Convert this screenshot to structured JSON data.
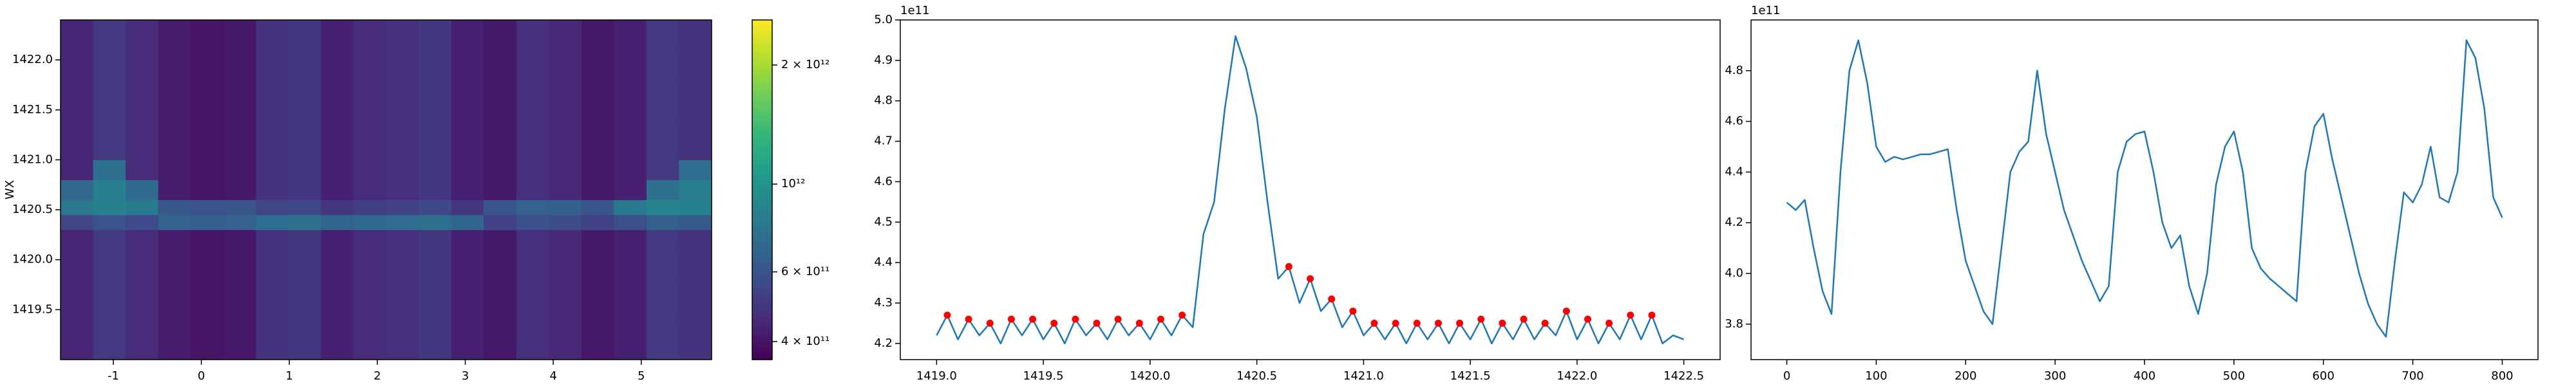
{
  "chart_data": [
    {
      "type": "heatmap",
      "ylabel": "WX",
      "cmap": "viridis",
      "log_color": true,
      "x_edges": [
        -1.6,
        -1.23,
        -0.86,
        -0.49,
        -0.12,
        0.25,
        0.62,
        0.99,
        1.36,
        1.73,
        2.1,
        2.47,
        2.84,
        3.21,
        3.58,
        3.95,
        4.32,
        4.69,
        5.06,
        5.43,
        5.8
      ],
      "y_edges": [
        1419.0,
        1419.4,
        1419.8,
        1420.1,
        1420.3,
        1420.45,
        1420.6,
        1420.8,
        1421.0,
        1421.4,
        1421.8,
        1422.1,
        1422.4
      ],
      "z": [
        [
          440000000000.0,
          500000000000.0,
          460000000000.0,
          420000000000.0,
          400000000000.0,
          410000000000.0,
          480000000000.0,
          490000000000.0,
          430000000000.0,
          460000000000.0,
          470000000000.0,
          490000000000.0,
          430000000000.0,
          410000000000.0,
          470000000000.0,
          450000000000.0,
          410000000000.0,
          430000000000.0,
          500000000000.0,
          480000000000.0
        ],
        [
          440000000000.0,
          500000000000.0,
          460000000000.0,
          420000000000.0,
          400000000000.0,
          410000000000.0,
          480000000000.0,
          490000000000.0,
          430000000000.0,
          460000000000.0,
          470000000000.0,
          490000000000.0,
          430000000000.0,
          410000000000.0,
          470000000000.0,
          450000000000.0,
          410000000000.0,
          430000000000.0,
          500000000000.0,
          480000000000.0
        ],
        [
          440000000000.0,
          500000000000.0,
          460000000000.0,
          420000000000.0,
          400000000000.0,
          410000000000.0,
          480000000000.0,
          490000000000.0,
          430000000000.0,
          460000000000.0,
          470000000000.0,
          490000000000.0,
          430000000000.0,
          410000000000.0,
          470000000000.0,
          450000000000.0,
          410000000000.0,
          430000000000.0,
          500000000000.0,
          480000000000.0
        ],
        [
          440000000000.0,
          500000000000.0,
          460000000000.0,
          420000000000.0,
          400000000000.0,
          410000000000.0,
          480000000000.0,
          490000000000.0,
          430000000000.0,
          460000000000.0,
          470000000000.0,
          490000000000.0,
          430000000000.0,
          410000000000.0,
          470000000000.0,
          450000000000.0,
          410000000000.0,
          430000000000.0,
          500000000000.0,
          480000000000.0
        ],
        [
          540000000000.0,
          600000000000.0,
          560000000000.0,
          670000000000.0,
          650000000000.0,
          660000000000.0,
          730000000000.0,
          740000000000.0,
          680000000000.0,
          710000000000.0,
          720000000000.0,
          740000000000.0,
          680000000000.0,
          530000000000.0,
          590000000000.0,
          570000000000.0,
          530000000000.0,
          580000000000.0,
          650000000000.0,
          630000000000.0
        ],
        [
          790000000000.0,
          850000000000.0,
          810000000000.0,
          620000000000.0,
          600000000000.0,
          610000000000.0,
          540000000000.0,
          550000000000.0,
          490000000000.0,
          520000000000.0,
          530000000000.0,
          550000000000.0,
          490000000000.0,
          610000000000.0,
          670000000000.0,
          650000000000.0,
          610000000000.0,
          810000000000.0,
          880000000000.0,
          860000000000.0
        ],
        [
          690000000000.0,
          850000000000.0,
          710000000000.0,
          420000000000.0,
          400000000000.0,
          410000000000.0,
          480000000000.0,
          490000000000.0,
          430000000000.0,
          460000000000.0,
          470000000000.0,
          490000000000.0,
          430000000000.0,
          410000000000.0,
          470000000000.0,
          450000000000.0,
          410000000000.0,
          430000000000.0,
          750000000000.0,
          830000000000.0
        ],
        [
          440000000000.0,
          750000000000.0,
          460000000000.0,
          420000000000.0,
          400000000000.0,
          410000000000.0,
          480000000000.0,
          490000000000.0,
          430000000000.0,
          460000000000.0,
          470000000000.0,
          490000000000.0,
          430000000000.0,
          410000000000.0,
          470000000000.0,
          450000000000.0,
          410000000000.0,
          430000000000.0,
          500000000000.0,
          730000000000.0
        ],
        [
          440000000000.0,
          500000000000.0,
          460000000000.0,
          420000000000.0,
          400000000000.0,
          410000000000.0,
          480000000000.0,
          490000000000.0,
          430000000000.0,
          460000000000.0,
          470000000000.0,
          490000000000.0,
          430000000000.0,
          410000000000.0,
          470000000000.0,
          450000000000.0,
          410000000000.0,
          430000000000.0,
          500000000000.0,
          480000000000.0
        ],
        [
          440000000000.0,
          500000000000.0,
          460000000000.0,
          420000000000.0,
          400000000000.0,
          410000000000.0,
          480000000000.0,
          490000000000.0,
          430000000000.0,
          460000000000.0,
          470000000000.0,
          490000000000.0,
          430000000000.0,
          410000000000.0,
          470000000000.0,
          450000000000.0,
          410000000000.0,
          430000000000.0,
          500000000000.0,
          480000000000.0
        ],
        [
          440000000000.0,
          500000000000.0,
          460000000000.0,
          420000000000.0,
          400000000000.0,
          410000000000.0,
          480000000000.0,
          490000000000.0,
          430000000000.0,
          460000000000.0,
          470000000000.0,
          490000000000.0,
          430000000000.0,
          410000000000.0,
          470000000000.0,
          450000000000.0,
          410000000000.0,
          430000000000.0,
          500000000000.0,
          480000000000.0
        ],
        [
          440000000000.0,
          500000000000.0,
          460000000000.0,
          420000000000.0,
          400000000000.0,
          410000000000.0,
          480000000000.0,
          490000000000.0,
          430000000000.0,
          460000000000.0,
          470000000000.0,
          490000000000.0,
          430000000000.0,
          410000000000.0,
          470000000000.0,
          450000000000.0,
          410000000000.0,
          430000000000.0,
          500000000000.0,
          480000000000.0
        ]
      ],
      "xlim": [
        -1.6,
        5.8
      ],
      "xticks": [
        -1,
        0,
        1,
        2,
        3,
        4,
        5
      ],
      "ylim": [
        1419.0,
        1422.4
      ],
      "yticks": [
        1419.5,
        {
          "value": 1420.0,
          "label": "1420.0"
        },
        1420.5,
        {
          "value": 1421.0,
          "label": "1421.0"
        },
        1421.5,
        {
          "value": 1422.0,
          "label": "1422.0"
        }
      ],
      "clim": [
        360000000000.0,
        2600000000000.0
      ],
      "cticks": [
        {
          "value": 400000000000.0,
          "label": "4 × 10¹¹"
        },
        {
          "value": 600000000000.0,
          "label": "6 × 10¹¹"
        },
        {
          "value": 1000000000000.0,
          "label": "10¹²"
        },
        {
          "value": 2000000000000.0,
          "label": "2 × 10¹²"
        }
      ]
    },
    {
      "type": "line",
      "offset_text": "1e11",
      "xlim": [
        1418.83,
        1422.67
      ],
      "xticks": [
        {
          "value": 1419.0,
          "label": "1419.0"
        },
        1419.5,
        {
          "value": 1420.0,
          "label": "1420.0"
        },
        1420.5,
        {
          "value": 1421.0,
          "label": "1421.0"
        },
        1421.5,
        {
          "value": 1422.0,
          "label": "1422.0"
        },
        1422.5
      ],
      "ylim": [
        4.16,
        5.0
      ],
      "yticks": [
        4.2,
        4.3,
        4.4,
        4.5,
        4.6,
        4.7,
        4.8,
        4.9,
        {
          "value": 5.0,
          "label": "5.0"
        }
      ],
      "series": [
        {
          "mode": "line",
          "color": "#1f77b4",
          "x": [
            1419.0,
            1419.05,
            1419.1,
            1419.15,
            1419.2,
            1419.25,
            1419.3,
            1419.35,
            1419.4,
            1419.45,
            1419.5,
            1419.55,
            1419.6,
            1419.65,
            1419.7,
            1419.75,
            1419.8,
            1419.85,
            1419.9,
            1419.95,
            1420.0,
            1420.05,
            1420.1,
            1420.15,
            1420.2,
            1420.25,
            1420.3,
            1420.35,
            1420.4,
            1420.45,
            1420.5,
            1420.55,
            1420.6,
            1420.65,
            1420.7,
            1420.75,
            1420.8,
            1420.85,
            1420.9,
            1420.95,
            1421.0,
            1421.05,
            1421.1,
            1421.15,
            1421.2,
            1421.25,
            1421.3,
            1421.35,
            1421.4,
            1421.45,
            1421.5,
            1421.55,
            1421.6,
            1421.65,
            1421.7,
            1421.75,
            1421.8,
            1421.85,
            1421.9,
            1421.95,
            1422.0,
            1422.05,
            1422.1,
            1422.15,
            1422.2,
            1422.25,
            1422.3,
            1422.35,
            1422.4,
            1422.45,
            1422.5
          ],
          "values": [
            4.22,
            4.27,
            4.21,
            4.26,
            4.22,
            4.25,
            4.2,
            4.26,
            4.22,
            4.26,
            4.21,
            4.25,
            4.2,
            4.26,
            4.22,
            4.25,
            4.21,
            4.26,
            4.22,
            4.25,
            4.21,
            4.26,
            4.22,
            4.27,
            4.24,
            4.47,
            4.55,
            4.78,
            4.96,
            4.88,
            4.76,
            4.55,
            4.36,
            4.39,
            4.3,
            4.36,
            4.28,
            4.31,
            4.24,
            4.28,
            4.22,
            4.25,
            4.21,
            4.25,
            4.2,
            4.25,
            4.21,
            4.25,
            4.2,
            4.25,
            4.21,
            4.26,
            4.2,
            4.25,
            4.21,
            4.26,
            4.21,
            4.25,
            4.22,
            4.28,
            4.21,
            4.26,
            4.2,
            4.25,
            4.21,
            4.27,
            4.21,
            4.27,
            4.2,
            4.22,
            4.21
          ]
        },
        {
          "mode": "markers",
          "color": "red",
          "x": [
            1419.05,
            1419.15,
            1419.25,
            1419.35,
            1419.45,
            1419.55,
            1419.65,
            1419.75,
            1419.85,
            1419.95,
            1420.05,
            1420.15,
            1420.65,
            1420.75,
            1420.85,
            1420.95,
            1421.05,
            1421.15,
            1421.25,
            1421.35,
            1421.45,
            1421.55,
            1421.65,
            1421.75,
            1421.85,
            1421.95,
            1422.05,
            1422.15,
            1422.25,
            1422.35
          ],
          "values": [
            4.27,
            4.26,
            4.25,
            4.26,
            4.26,
            4.25,
            4.26,
            4.25,
            4.26,
            4.25,
            4.26,
            4.27,
            4.39,
            4.36,
            4.31,
            4.28,
            4.25,
            4.25,
            4.25,
            4.25,
            4.25,
            4.26,
            4.25,
            4.26,
            4.25,
            4.28,
            4.26,
            4.25,
            4.27,
            4.27
          ]
        }
      ]
    },
    {
      "type": "line",
      "offset_text": "1e11",
      "xlim": [
        -40,
        840
      ],
      "xticks": [
        0,
        100,
        200,
        300,
        400,
        500,
        600,
        700,
        800
      ],
      "ylim": [
        3.66,
        5.0
      ],
      "yticks": [
        3.8,
        {
          "value": 4.0,
          "label": "4.0"
        },
        4.2,
        4.4,
        4.6,
        4.8
      ],
      "series": [
        {
          "mode": "line",
          "color": "#1f77b4",
          "x": [
            0,
            10,
            20,
            30,
            40,
            50,
            60,
            70,
            80,
            90,
            100,
            110,
            120,
            130,
            140,
            150,
            160,
            170,
            180,
            190,
            200,
            210,
            220,
            230,
            240,
            250,
            260,
            270,
            280,
            290,
            300,
            310,
            320,
            330,
            340,
            350,
            360,
            370,
            380,
            390,
            400,
            410,
            420,
            430,
            440,
            450,
            460,
            470,
            480,
            490,
            500,
            510,
            520,
            530,
            540,
            550,
            560,
            570,
            580,
            590,
            600,
            610,
            620,
            630,
            640,
            650,
            660,
            670,
            680,
            690,
            700,
            710,
            720,
            730,
            740,
            750,
            760,
            770,
            780,
            790,
            800
          ],
          "values": [
            4.28,
            4.25,
            4.29,
            4.1,
            3.93,
            3.84,
            4.4,
            4.8,
            4.92,
            4.75,
            4.5,
            4.44,
            4.46,
            4.45,
            4.46,
            4.47,
            4.47,
            4.48,
            4.49,
            4.25,
            4.05,
            3.95,
            3.85,
            3.8,
            4.1,
            4.4,
            4.48,
            4.52,
            4.8,
            4.55,
            4.4,
            4.25,
            4.15,
            4.05,
            3.97,
            3.89,
            3.95,
            4.4,
            4.52,
            4.55,
            4.56,
            4.4,
            4.2,
            4.1,
            4.15,
            3.95,
            3.84,
            4.0,
            4.35,
            4.5,
            4.56,
            4.4,
            4.1,
            4.02,
            3.98,
            3.95,
            3.92,
            3.89,
            4.4,
            4.58,
            4.63,
            4.45,
            4.3,
            4.15,
            4.0,
            3.88,
            3.8,
            3.75,
            4.05,
            4.32,
            4.28,
            4.35,
            4.5,
            4.3,
            4.28,
            4.4,
            4.92,
            4.85,
            4.65,
            4.3,
            4.22
          ]
        }
      ]
    }
  ]
}
